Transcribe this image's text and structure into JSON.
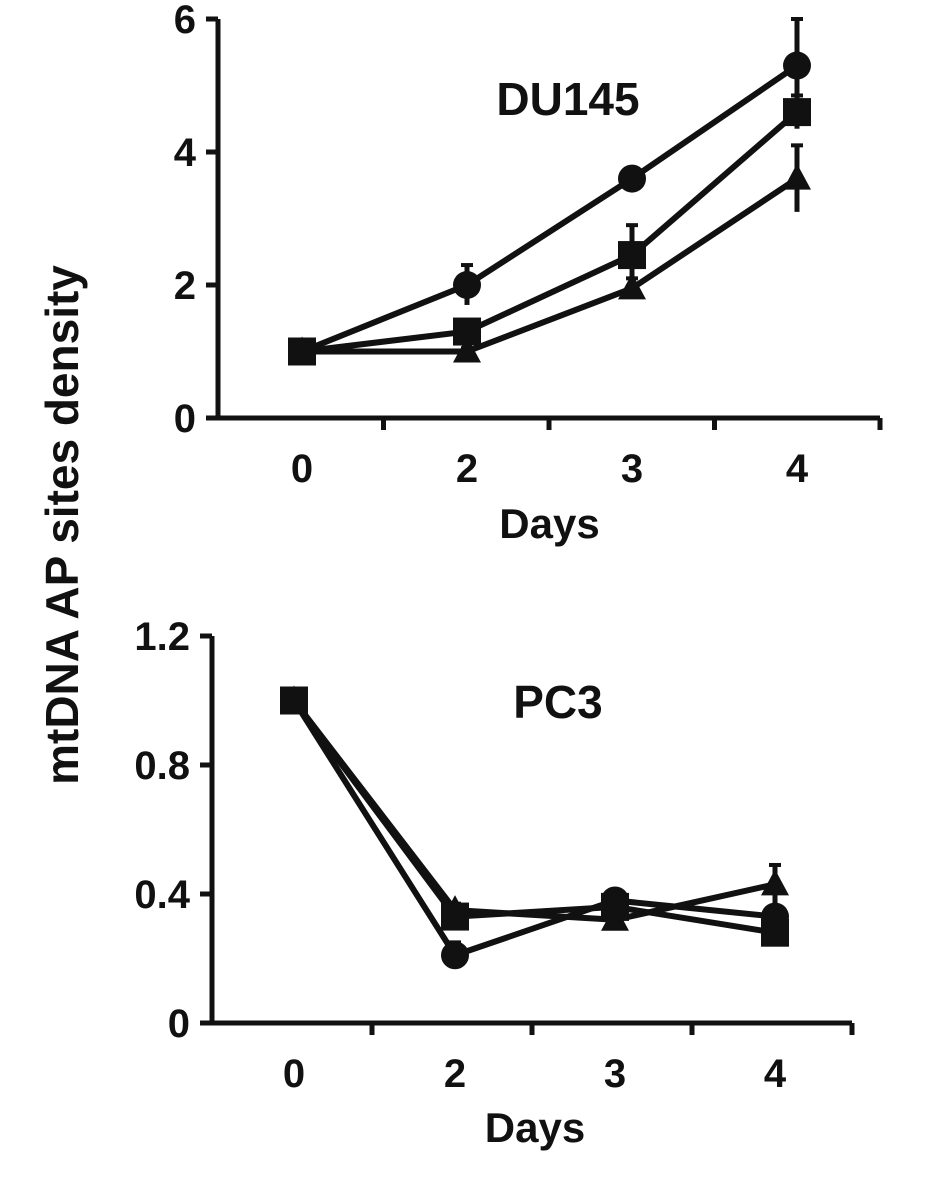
{
  "figure": {
    "ylabel": "mtDNA AP sites density"
  },
  "chart_data": [
    {
      "type": "line",
      "title": "DU145",
      "xlabel": "Days",
      "ylabel": "mtDNA AP sites density",
      "categories": [
        "0",
        "2",
        "3",
        "4"
      ],
      "ylim": [
        0,
        6
      ],
      "yticks": [
        "0",
        "2",
        "4",
        "6"
      ],
      "grid": false,
      "legend": "none",
      "series": [
        {
          "marker": "circle",
          "values": [
            1.0,
            2.0,
            3.6,
            5.3
          ],
          "errors": [
            0,
            0.3,
            0.1,
            0.7
          ]
        },
        {
          "marker": "square",
          "values": [
            1.0,
            1.3,
            2.45,
            4.6
          ],
          "errors": [
            0,
            0.1,
            0.45,
            0.25
          ]
        },
        {
          "marker": "triangle",
          "values": [
            1.0,
            1.0,
            1.95,
            3.6
          ],
          "errors": [
            0,
            0.05,
            0.15,
            0.5
          ]
        }
      ]
    },
    {
      "type": "line",
      "title": "PC3",
      "xlabel": "Days",
      "ylabel": "mtDNA AP sites density",
      "categories": [
        "0",
        "2",
        "3",
        "4"
      ],
      "ylim": [
        0,
        1.2
      ],
      "yticks": [
        "0",
        "0.4",
        "0.8",
        "1.2"
      ],
      "grid": false,
      "legend": "none",
      "series": [
        {
          "marker": "circle",
          "values": [
            1.0,
            0.21,
            0.38,
            0.33
          ],
          "errors": [
            0,
            0.04,
            0.02,
            0.03
          ]
        },
        {
          "marker": "square",
          "values": [
            1.0,
            0.33,
            0.36,
            0.28
          ],
          "errors": [
            0,
            0.03,
            0.02,
            0.03
          ]
        },
        {
          "marker": "triangle",
          "values": [
            1.0,
            0.35,
            0.32,
            0.43
          ],
          "errors": [
            0,
            0.02,
            0.02,
            0.06
          ]
        }
      ]
    }
  ]
}
